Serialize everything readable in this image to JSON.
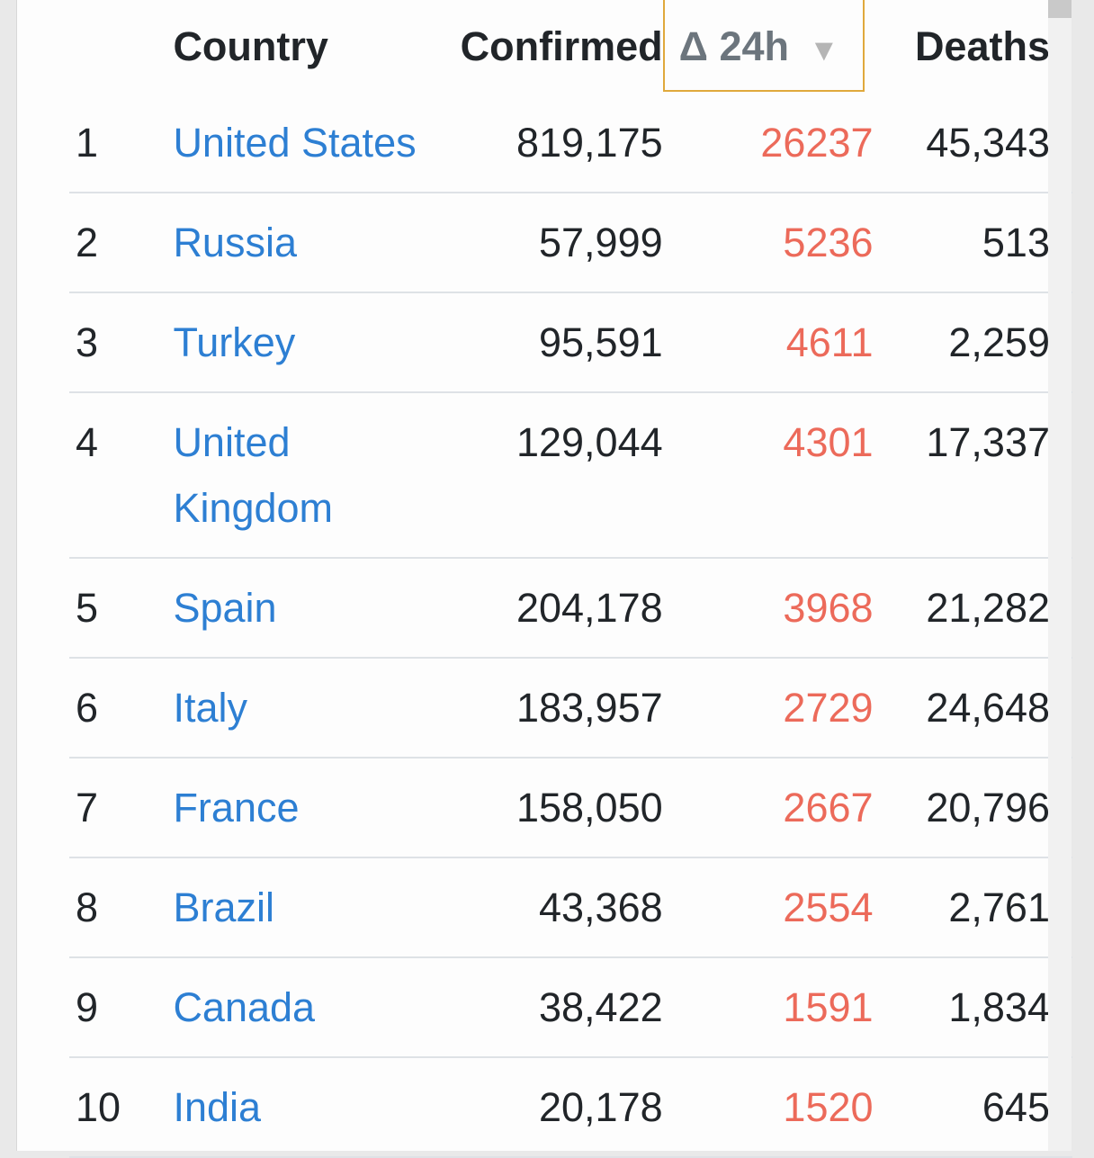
{
  "table": {
    "headers": {
      "rank": "",
      "country": "Country",
      "confirmed": "Confirmed",
      "delta": "Δ 24h",
      "deaths": "Deaths"
    },
    "sort_indicator": "▼",
    "rows": [
      {
        "rank": "1",
        "country": "United States",
        "confirmed": "819,175",
        "delta": "26237",
        "deaths": "45,343"
      },
      {
        "rank": "2",
        "country": "Russia",
        "confirmed": "57,999",
        "delta": "5236",
        "deaths": "513"
      },
      {
        "rank": "3",
        "country": "Turkey",
        "confirmed": "95,591",
        "delta": "4611",
        "deaths": "2,259"
      },
      {
        "rank": "4",
        "country": "United Kingdom",
        "confirmed": "129,044",
        "delta": "4301",
        "deaths": "17,337"
      },
      {
        "rank": "5",
        "country": "Spain",
        "confirmed": "204,178",
        "delta": "3968",
        "deaths": "21,282"
      },
      {
        "rank": "6",
        "country": "Italy",
        "confirmed": "183,957",
        "delta": "2729",
        "deaths": "24,648"
      },
      {
        "rank": "7",
        "country": "France",
        "confirmed": "158,050",
        "delta": "2667",
        "deaths": "20,796"
      },
      {
        "rank": "8",
        "country": "Brazil",
        "confirmed": "43,368",
        "delta": "2554",
        "deaths": "2,761"
      },
      {
        "rank": "9",
        "country": "Canada",
        "confirmed": "38,422",
        "delta": "1591",
        "deaths": "1,834"
      },
      {
        "rank": "10",
        "country": "India",
        "confirmed": "20,178",
        "delta": "1520",
        "deaths": "645"
      }
    ]
  },
  "colors": {
    "link": "#2d7fd3",
    "delta": "#ec6a5a",
    "sort_highlight": "#e0a93c"
  }
}
